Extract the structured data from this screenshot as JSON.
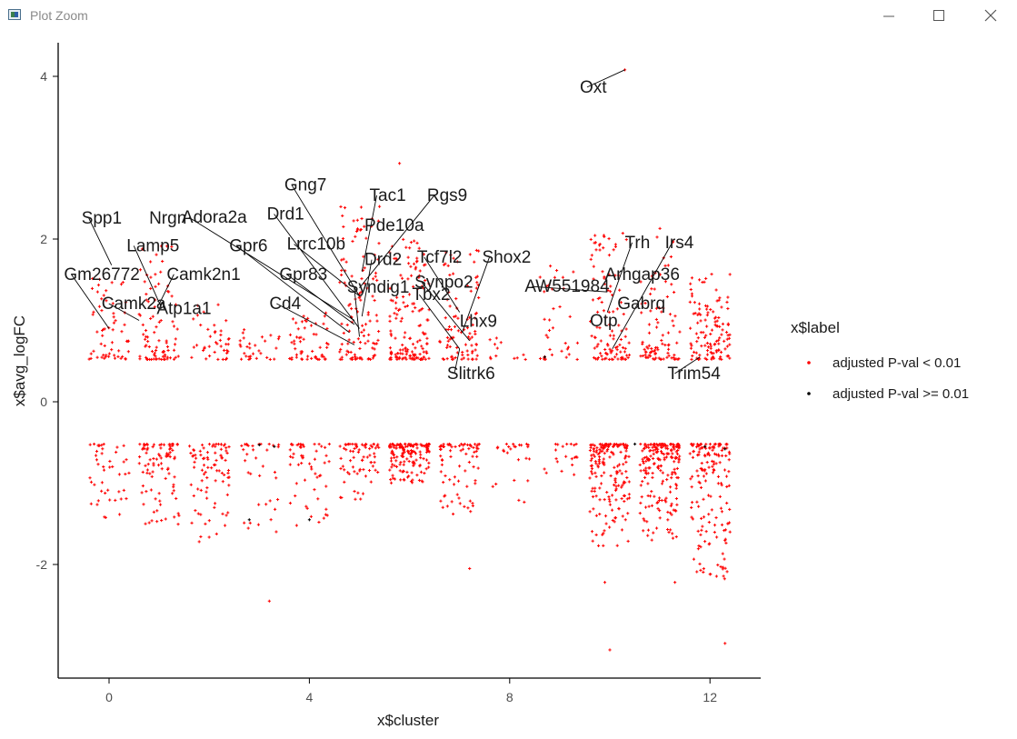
{
  "window": {
    "title": "Plot Zoom",
    "icon": "plot-zoom-app-icon",
    "controls": [
      "minimize-icon",
      "maximize-icon",
      "close-icon"
    ]
  },
  "colors": {
    "significant": "#ff0000",
    "nonsignificant": "#000000",
    "axis": "#000000",
    "leader": "#000000"
  },
  "chart_data": {
    "type": "scatter",
    "title": "",
    "xlabel": "x$cluster",
    "ylabel": "x$avg_logFC",
    "xlim": [
      -1,
      13
    ],
    "ylim": [
      -3.4,
      4.4
    ],
    "xticks": [
      0,
      4,
      8,
      12
    ],
    "yticks": [
      -2,
      0,
      2,
      4
    ],
    "grid": false,
    "legend": {
      "title": "x$label",
      "position": "right",
      "entries": [
        {
          "name": "adjusted P-val < 0.01",
          "color": "#ff0000"
        },
        {
          "name": "adjusted P-val >= 0.01",
          "color": "#000000"
        }
      ]
    },
    "series": [
      {
        "name": "adjusted P-val < 0.01",
        "color": "#ff0000",
        "note": "dense jittered columns per cluster 0-12, |logFC| >= 0.5",
        "clusters": [
          {
            "cluster": 0,
            "up_n": 60,
            "up_max": 1.55,
            "down_n": 45,
            "down_min": -1.45
          },
          {
            "cluster": 1,
            "up_n": 90,
            "up_max": 1.95,
            "down_n": 90,
            "down_min": -1.6
          },
          {
            "cluster": 2,
            "up_n": 40,
            "up_max": 1.2,
            "down_n": 85,
            "down_min": -1.7
          },
          {
            "cluster": 3,
            "up_n": 30,
            "up_max": 0.9,
            "down_n": 35,
            "down_min": -1.6
          },
          {
            "cluster": 4,
            "up_n": 55,
            "up_max": 1.1,
            "down_n": 55,
            "down_min": -1.55
          },
          {
            "cluster": 5,
            "up_n": 120,
            "up_max": 2.4,
            "down_n": 70,
            "down_min": -1.2
          },
          {
            "cluster": 6,
            "up_n": 150,
            "up_max": 2.0,
            "down_n": 150,
            "down_min": -1.0
          },
          {
            "cluster": 7,
            "up_n": 90,
            "up_max": 1.9,
            "down_n": 75,
            "down_min": -1.4
          },
          {
            "cluster": 8,
            "up_n": 12,
            "up_max": 0.8,
            "down_n": 25,
            "down_min": -1.3
          },
          {
            "cluster": 9,
            "up_n": 35,
            "up_max": 1.7,
            "down_n": 20,
            "down_min": -0.9
          },
          {
            "cluster": 10,
            "up_n": 110,
            "up_max": 2.1,
            "down_n": 180,
            "down_min": -1.8
          },
          {
            "cluster": 11,
            "up_n": 90,
            "up_max": 2.1,
            "down_n": 200,
            "down_min": -1.7
          },
          {
            "cluster": 12,
            "up_n": 120,
            "up_max": 1.6,
            "down_n": 160,
            "down_min": -2.2
          }
        ],
        "outliers": [
          {
            "x": 10.3,
            "y": 4.08
          },
          {
            "x": 5.8,
            "y": 2.93
          },
          {
            "x": 3.2,
            "y": -2.45
          },
          {
            "x": 7.2,
            "y": -2.05
          },
          {
            "x": 9.9,
            "y": -2.22
          },
          {
            "x": 11.3,
            "y": -2.22
          },
          {
            "x": 12.0,
            "y": -2.12
          },
          {
            "x": 10.0,
            "y": -3.05
          },
          {
            "x": 12.3,
            "y": -2.97
          },
          {
            "x": 1.8,
            "y": -1.72
          },
          {
            "x": 5.4,
            "y": 2.4
          },
          {
            "x": 11.0,
            "y": 2.13
          }
        ]
      },
      {
        "name": "adjusted P-val >= 0.01",
        "color": "#000000",
        "points": [
          {
            "x": 2.8,
            "y": -1.45
          },
          {
            "x": 4.0,
            "y": -1.45
          },
          {
            "x": 3.3,
            "y": -0.55
          },
          {
            "x": 3.0,
            "y": -0.53
          },
          {
            "x": 8.7,
            "y": 0.55
          },
          {
            "x": 10.5,
            "y": -0.52
          },
          {
            "x": 11.9,
            "y": -0.55
          },
          {
            "x": 12.3,
            "y": -0.58
          }
        ]
      }
    ],
    "labels": [
      {
        "gene": "Spp1",
        "lx": -0.55,
        "ly": 2.19,
        "px": 0.05,
        "py": 1.68
      },
      {
        "gene": "Nrgn",
        "lx": 0.8,
        "ly": 2.19,
        "px": 0.85,
        "py": 1.9
      },
      {
        "gene": "Lamp5",
        "lx": 0.35,
        "ly": 1.85,
        "px": 1.05,
        "py": 1.15
      },
      {
        "gene": "Gm26772",
        "lx": -0.9,
        "ly": 1.5,
        "px": 0.0,
        "py": 0.9
      },
      {
        "gene": "Camk2n1",
        "lx": 1.15,
        "ly": 1.5,
        "px": 1.0,
        "py": 1.2
      },
      {
        "gene": "Camk2a",
        "lx": -0.15,
        "ly": 1.14,
        "px": 0.6,
        "py": 1.0
      },
      {
        "gene": "Atp1a1",
        "lx": 0.95,
        "ly": 1.08,
        "px": 0.95,
        "py": 1.05
      },
      {
        "gene": "Adora2a",
        "lx": 1.45,
        "ly": 2.2,
        "px": 4.9,
        "py": 1.0
      },
      {
        "gene": "Drd1",
        "lx": 3.15,
        "ly": 2.24,
        "px": 5.0,
        "py": 0.9
      },
      {
        "gene": "Gng7",
        "lx": 3.5,
        "ly": 2.6,
        "px": 5.0,
        "py": 1.3
      },
      {
        "gene": "Tac1",
        "lx": 5.2,
        "ly": 2.47,
        "px": 5.05,
        "py": 1.6
      },
      {
        "gene": "Rgs9",
        "lx": 6.35,
        "ly": 2.47,
        "px": 5.0,
        "py": 1.4
      },
      {
        "gene": "Pde10a",
        "lx": 5.1,
        "ly": 2.1,
        "px": 5.0,
        "py": 1.8
      },
      {
        "gene": "Gpr6",
        "lx": 2.4,
        "ly": 1.85,
        "px": 4.8,
        "py": 0.85
      },
      {
        "gene": "Lrrc10b",
        "lx": 3.55,
        "ly": 1.87,
        "px": 5.0,
        "py": 1.3
      },
      {
        "gene": "Drd2",
        "lx": 5.1,
        "ly": 1.68,
        "px": 5.05,
        "py": 1.05
      },
      {
        "gene": "Tcf7l2",
        "lx": 6.15,
        "ly": 1.71,
        "px": 7.0,
        "py": 1.1
      },
      {
        "gene": "Shox2",
        "lx": 7.45,
        "ly": 1.71,
        "px": 7.05,
        "py": 0.85
      },
      {
        "gene": "Gpr83",
        "lx": 3.4,
        "ly": 1.5,
        "px": 4.9,
        "py": 0.95
      },
      {
        "gene": "Syndig1",
        "lx": 4.75,
        "ly": 1.34,
        "px": 5.0,
        "py": 0.8
      },
      {
        "gene": "Synpo2",
        "lx": 6.1,
        "ly": 1.4,
        "px": 7.2,
        "py": 0.75
      },
      {
        "gene": "Tbx2",
        "lx": 6.05,
        "ly": 1.25,
        "px": 7.0,
        "py": 0.65
      },
      {
        "gene": "AW551984",
        "lx": 8.3,
        "ly": 1.35,
        "px": 9.95,
        "py": 1.35
      },
      {
        "gene": "Arhgap36",
        "lx": 9.9,
        "ly": 1.5,
        "px": 9.7,
        "py": 1.4
      },
      {
        "gene": "Cd4",
        "lx": 3.2,
        "ly": 1.14,
        "px": 4.9,
        "py": 0.7
      },
      {
        "gene": "Lhx9",
        "lx": 7.0,
        "ly": 0.92,
        "px": 7.1,
        "py": 0.85
      },
      {
        "gene": "Otp",
        "lx": 9.6,
        "ly": 0.93,
        "px": 9.95,
        "py": 1.05
      },
      {
        "gene": "Gabrq",
        "lx": 10.15,
        "ly": 1.14,
        "px": 10.1,
        "py": 0.9
      },
      {
        "gene": "Trh",
        "lx": 10.3,
        "ly": 1.89,
        "px": 9.95,
        "py": 1.1
      },
      {
        "gene": "Irs4",
        "lx": 11.1,
        "ly": 1.89,
        "px": 10.05,
        "py": 0.65
      },
      {
        "gene": "Slitrk6",
        "lx": 6.75,
        "ly": 0.28,
        "px": 7.0,
        "py": 0.65
      },
      {
        "gene": "Trim54",
        "lx": 11.15,
        "ly": 0.28,
        "px": 11.8,
        "py": 0.55
      },
      {
        "gene": "Oxt",
        "lx": 9.4,
        "ly": 3.8,
        "px": 10.3,
        "py": 4.08
      }
    ]
  }
}
